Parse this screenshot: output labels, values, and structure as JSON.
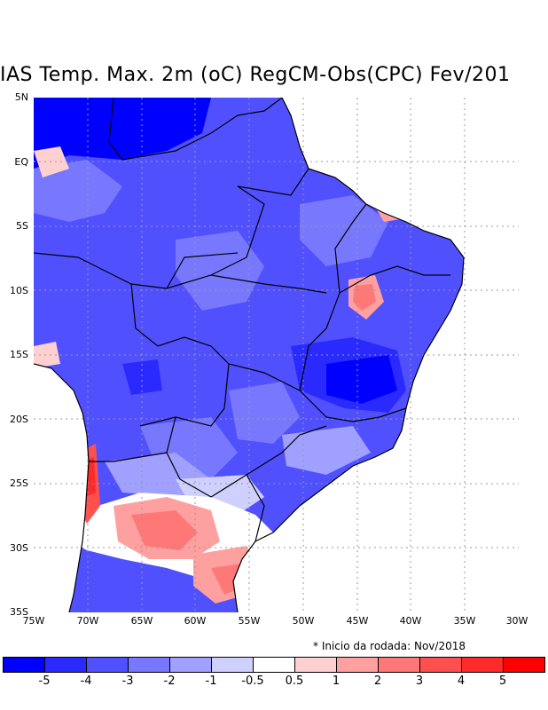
{
  "map": {
    "title": "IAS Temp. Max. 2m (oC) RegCM-Obs(CPC) Fev/201",
    "lat_labels": [
      "5N",
      "EQ",
      "5S",
      "10S",
      "15S",
      "20S",
      "25S",
      "30S",
      "35S"
    ],
    "lon_labels": [
      "75W",
      "70W",
      "65W",
      "60W",
      "55W",
      "50W",
      "45W",
      "40W",
      "35W",
      "30W"
    ],
    "footnote": "* Inicio da rodada: Nov/2018",
    "colorbar": {
      "colors": [
        "#0000ff",
        "#2a2aff",
        "#5050ff",
        "#7878ff",
        "#a0a0ff",
        "#d0d0ff",
        "#ffffff",
        "#ffd0d0",
        "#ffa0a0",
        "#ff7878",
        "#ff5050",
        "#ff2a2a",
        "#ff0000"
      ],
      "labels": [
        "-5",
        "-4",
        "-3",
        "-2",
        "-1",
        "-0.5",
        "0.5",
        "1",
        "2",
        "3",
        "4",
        "5"
      ]
    }
  }
}
